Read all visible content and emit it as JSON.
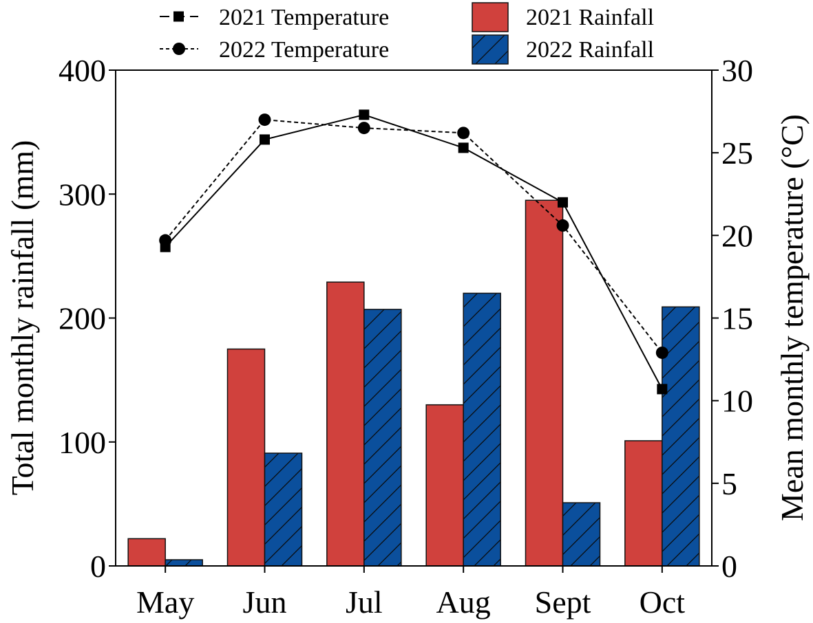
{
  "chart_data": {
    "type": "bar+line",
    "title": "",
    "categories": [
      "May",
      "Jun",
      "Jul",
      "Aug",
      "Sept",
      "Oct"
    ],
    "series": [
      {
        "name": "2021 Rainfall",
        "kind": "bar",
        "axis": "left",
        "color": "#d0413d",
        "hatch": false,
        "values": [
          22,
          175,
          229,
          130,
          295,
          101
        ]
      },
      {
        "name": "2022 Rainfall",
        "kind": "bar",
        "axis": "left",
        "color": "#0b4f9c",
        "hatch": true,
        "values": [
          5,
          91,
          207,
          220,
          51,
          209
        ]
      },
      {
        "name": "2021 Temperature",
        "kind": "line",
        "axis": "right",
        "color": "#000000",
        "marker": "square",
        "dash": "solid",
        "values": [
          19.3,
          25.8,
          27.3,
          25.3,
          22.0,
          10.7
        ]
      },
      {
        "name": "2022 Temperature",
        "kind": "line",
        "axis": "right",
        "color": "#000000",
        "marker": "circle",
        "dash": "dashed",
        "values": [
          19.7,
          27.0,
          26.5,
          26.2,
          20.6,
          12.9
        ]
      }
    ],
    "ylabel_left": "Total monthly rainfall (mm)",
    "ylim_left": [
      0,
      400
    ],
    "yticks_left": [
      "0",
      "100",
      "200",
      "300",
      "400"
    ],
    "ylabel_right": "Mean monthly temperature (°C)",
    "ylim_right": [
      0,
      30
    ],
    "yticks_right": [
      "0",
      "5",
      "10",
      "15",
      "20",
      "25",
      "30"
    ],
    "legend": [
      {
        "label": "2021 Temperature",
        "series": "2021 Temperature"
      },
      {
        "label": "2022 Temperature",
        "series": "2022 Temperature"
      },
      {
        "label": "2021 Rainfall",
        "series": "2021 Rainfall"
      },
      {
        "label": "2022 Rainfall",
        "series": "2022 Rainfall"
      }
    ],
    "legend_position": "top",
    "grid": false
  }
}
